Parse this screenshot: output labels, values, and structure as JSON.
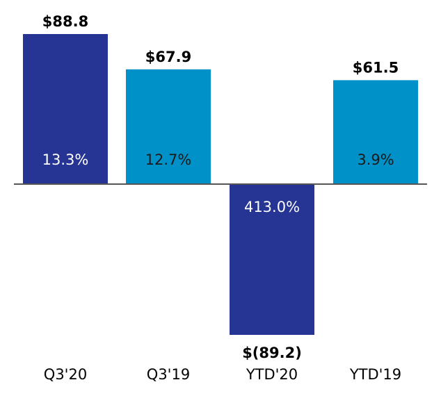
{
  "chart_data": {
    "type": "bar",
    "categories": [
      "Q3'20",
      "Q3'19",
      "YTD'20",
      "YTD'19"
    ],
    "values": [
      88.8,
      67.9,
      -89.2,
      61.5
    ],
    "value_labels": [
      "$88.8",
      "$67.9",
      "$(89.2)",
      "$61.5"
    ],
    "percent_labels": [
      "13.3%",
      "12.7%",
      "413.0%",
      "3.9%"
    ],
    "bar_colors": [
      "#263594",
      "#0091C8",
      "#263594",
      "#0091C8"
    ],
    "percent_label_colors": [
      "#ffffff",
      "#1a1a1a",
      "#ffffff",
      "#1a1a1a"
    ],
    "baseline_color": "#555555",
    "title": "",
    "xlabel": "",
    "ylabel": "",
    "ylim": [
      -89.2,
      88.8
    ]
  }
}
